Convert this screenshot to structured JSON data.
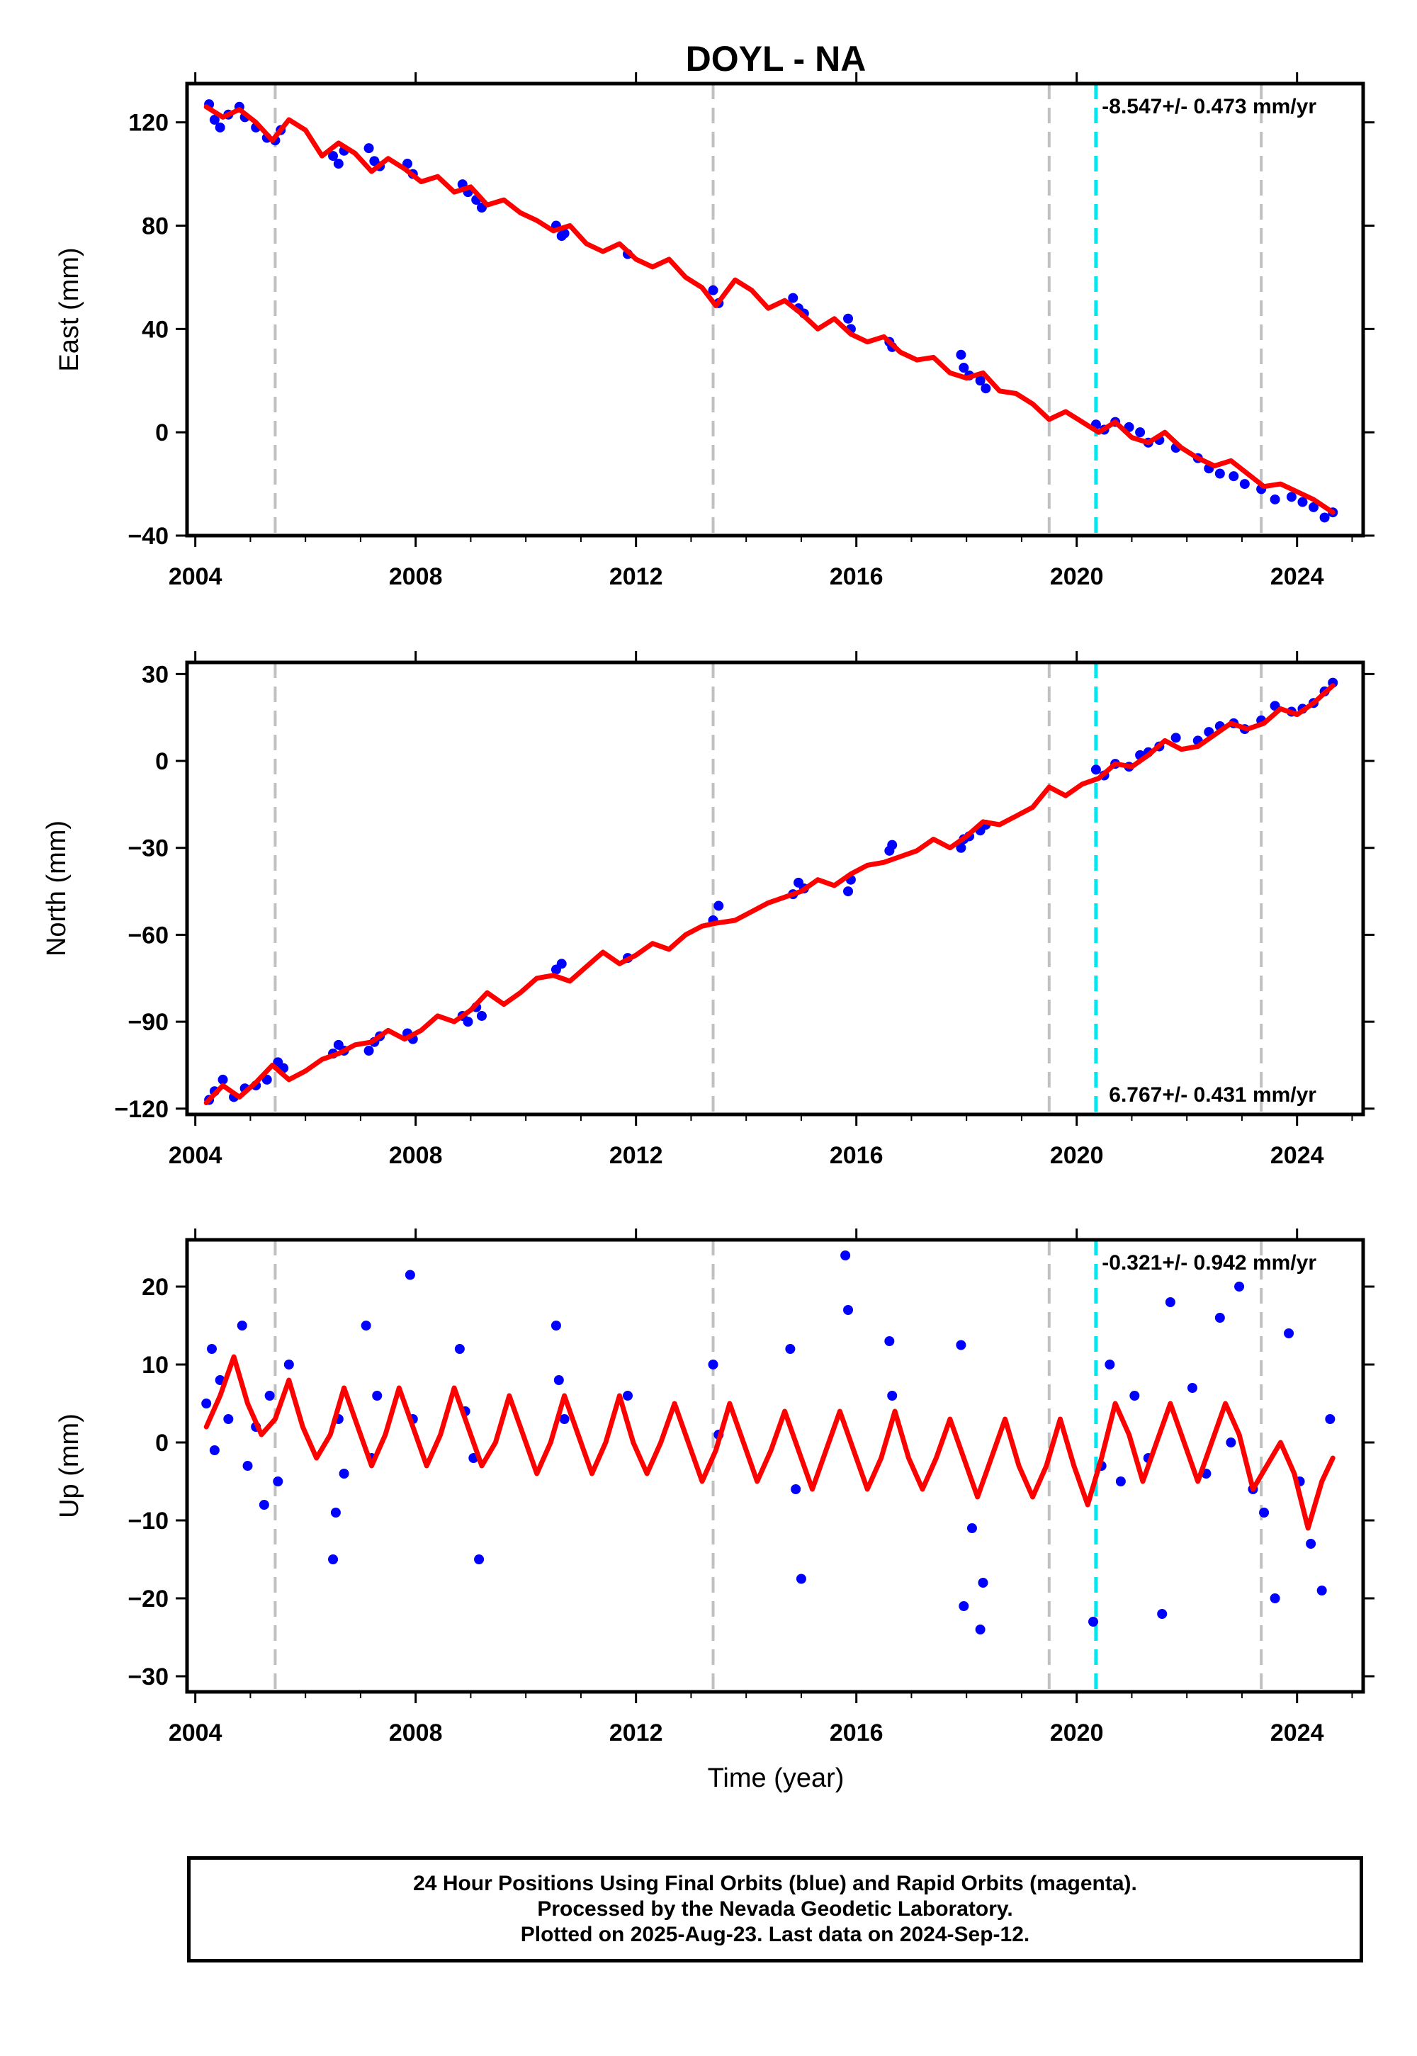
{
  "title": "DOYL - NA",
  "xlabel": "Time (year)",
  "colors": {
    "data_points": "#0000ff",
    "model_fit": "#ff0000",
    "event_line": "#c0c0c0",
    "equipment_change": "#00e5ee",
    "frame": "#000000"
  },
  "chart_data": [
    {
      "type": "scatter",
      "panel": "east",
      "ylabel": "East (mm)",
      "ylim": [
        -40,
        135
      ],
      "yticks": [
        -40,
        0,
        40,
        80,
        120
      ],
      "xlim": [
        2003.85,
        2025.2
      ],
      "xticks": [
        2004,
        2008,
        2012,
        2016,
        2020,
        2024
      ],
      "rate_text": "-8.547+/- 0.473 mm/yr",
      "rate_position": "top-right",
      "series": [
        {
          "marker": "point",
          "color": "#0000ff",
          "x": [
            2004.25,
            2004.35,
            2004.45,
            2004.6,
            2004.8,
            2004.9,
            2005.1,
            2005.3,
            2005.45,
            2005.55,
            2006.5,
            2006.6,
            2006.7,
            2007.15,
            2007.25,
            2007.35,
            2007.85,
            2007.95,
            2008.85,
            2008.95,
            2009.1,
            2009.2,
            2010.55,
            2010.65,
            2010.7,
            2011.85,
            2013.4,
            2013.5,
            2014.85,
            2014.95,
            2015.05,
            2015.85,
            2015.9,
            2016.6,
            2016.65,
            2017.9,
            2017.95,
            2018.05,
            2018.25,
            2018.35,
            2020.35,
            2020.5,
            2020.7,
            2020.95,
            2021.15,
            2021.3,
            2021.5,
            2021.8,
            2022.2,
            2022.4,
            2022.6,
            2022.85,
            2023.05,
            2023.35,
            2023.6,
            2023.9,
            2024.1,
            2024.3,
            2024.5,
            2024.65
          ],
          "y": [
            127,
            121,
            118,
            123,
            126,
            122,
            118,
            114,
            113,
            117,
            107,
            104,
            109,
            110,
            105,
            103,
            104,
            100,
            96,
            93,
            90,
            87,
            80,
            76,
            77,
            69,
            55,
            50,
            52,
            48,
            46,
            44,
            40,
            35,
            33,
            30,
            25,
            22,
            20,
            17,
            3,
            1,
            4,
            2,
            0,
            -4,
            -3,
            -6,
            -10,
            -14,
            -16,
            -17,
            -20,
            -22,
            -26,
            -25,
            -27,
            -29,
            -33,
            -31
          ]
        },
        {
          "marker": "line",
          "color": "#ff0000",
          "x": [
            2004.2,
            2004.5,
            2004.8,
            2005.1,
            2005.4,
            2005.7,
            2006.0,
            2006.3,
            2006.6,
            2006.9,
            2007.2,
            2007.5,
            2007.8,
            2008.1,
            2008.4,
            2008.7,
            2009.0,
            2009.3,
            2009.6,
            2009.9,
            2010.2,
            2010.5,
            2010.8,
            2011.1,
            2011.4,
            2011.7,
            2012.0,
            2012.3,
            2012.6,
            2012.9,
            2013.2,
            2013.45,
            2013.8,
            2014.1,
            2014.4,
            2014.7,
            2015.0,
            2015.3,
            2015.6,
            2015.9,
            2016.2,
            2016.5,
            2016.8,
            2017.1,
            2017.4,
            2017.7,
            2018.0,
            2018.3,
            2018.6,
            2018.9,
            2019.2,
            2019.5,
            2019.8,
            2020.1,
            2020.4,
            2020.7,
            2021.0,
            2021.3,
            2021.6,
            2021.9,
            2022.2,
            2022.5,
            2022.8,
            2023.1,
            2023.4,
            2023.7,
            2024.0,
            2024.3,
            2024.65
          ],
          "y": [
            126,
            122,
            125,
            120,
            113,
            121,
            117,
            107,
            112,
            108,
            101,
            106,
            102,
            97,
            99,
            93,
            95,
            88,
            90,
            85,
            82,
            78,
            80,
            73,
            70,
            73,
            67,
            64,
            67,
            60,
            56,
            49,
            59,
            55,
            48,
            51,
            46,
            40,
            44,
            38,
            35,
            37,
            31,
            28,
            29,
            23,
            21,
            23,
            16,
            15,
            11,
            5,
            8,
            4,
            0,
            4,
            -2,
            -4,
            0,
            -6,
            -10,
            -13,
            -11,
            -16,
            -21,
            -20,
            -23,
            -26,
            -31
          ]
        }
      ]
    },
    {
      "type": "scatter",
      "panel": "north",
      "ylabel": "North (mm)",
      "ylim": [
        -122,
        34
      ],
      "yticks": [
        -120,
        -90,
        -60,
        -30,
        0,
        30
      ],
      "xlim": [
        2003.85,
        2025.2
      ],
      "xticks": [
        2004,
        2008,
        2012,
        2016,
        2020,
        2024
      ],
      "rate_text": "6.767+/- 0.431 mm/yr",
      "rate_position": "bottom-right",
      "series": [
        {
          "marker": "point",
          "color": "#0000ff",
          "x": [
            2004.25,
            2004.35,
            2004.5,
            2004.7,
            2004.9,
            2005.1,
            2005.3,
            2005.5,
            2005.6,
            2006.5,
            2006.6,
            2006.7,
            2007.15,
            2007.25,
            2007.35,
            2007.85,
            2007.95,
            2008.85,
            2008.95,
            2009.1,
            2009.2,
            2010.55,
            2010.65,
            2011.85,
            2013.4,
            2013.5,
            2014.85,
            2014.95,
            2015.05,
            2015.85,
            2015.9,
            2016.6,
            2016.65,
            2017.9,
            2017.95,
            2018.05,
            2018.25,
            2018.35,
            2020.35,
            2020.5,
            2020.7,
            2020.95,
            2021.15,
            2021.3,
            2021.5,
            2021.8,
            2022.2,
            2022.4,
            2022.6,
            2022.85,
            2023.05,
            2023.35,
            2023.6,
            2023.9,
            2024.1,
            2024.3,
            2024.5,
            2024.65
          ],
          "y": [
            -117,
            -114,
            -110,
            -116,
            -113,
            -112,
            -110,
            -104,
            -106,
            -101,
            -98,
            -100,
            -100,
            -97,
            -95,
            -94,
            -96,
            -88,
            -90,
            -85,
            -88,
            -72,
            -70,
            -68,
            -55,
            -50,
            -46,
            -42,
            -44,
            -45,
            -41,
            -31,
            -29,
            -30,
            -27,
            -26,
            -24,
            -22,
            -3,
            -5,
            -1,
            -2,
            2,
            3,
            5,
            8,
            7,
            10,
            12,
            13,
            11,
            14,
            19,
            17,
            18,
            20,
            24,
            27
          ]
        },
        {
          "marker": "line",
          "color": "#ff0000",
          "x": [
            2004.2,
            2004.5,
            2004.8,
            2005.1,
            2005.4,
            2005.7,
            2006.0,
            2006.3,
            2006.6,
            2006.9,
            2007.2,
            2007.5,
            2007.8,
            2008.1,
            2008.4,
            2008.7,
            2009.0,
            2009.3,
            2009.6,
            2009.9,
            2010.2,
            2010.5,
            2010.8,
            2011.1,
            2011.4,
            2011.7,
            2012.0,
            2012.3,
            2012.6,
            2012.9,
            2013.2,
            2013.45,
            2013.8,
            2014.1,
            2014.4,
            2014.7,
            2015.0,
            2015.3,
            2015.6,
            2015.9,
            2016.2,
            2016.5,
            2016.8,
            2017.1,
            2017.4,
            2017.7,
            2018.0,
            2018.3,
            2018.6,
            2018.9,
            2019.2,
            2019.5,
            2019.8,
            2020.1,
            2020.4,
            2020.7,
            2021.0,
            2021.3,
            2021.6,
            2021.9,
            2022.2,
            2022.5,
            2022.8,
            2023.1,
            2023.4,
            2023.7,
            2024.0,
            2024.3,
            2024.65
          ],
          "y": [
            -118,
            -112,
            -116,
            -111,
            -105,
            -110,
            -107,
            -103,
            -101,
            -98,
            -97,
            -93,
            -96,
            -93,
            -88,
            -90,
            -86,
            -80,
            -84,
            -80,
            -75,
            -74,
            -76,
            -71,
            -66,
            -70,
            -67,
            -63,
            -65,
            -60,
            -57,
            -56,
            -55,
            -52,
            -49,
            -47,
            -45,
            -41,
            -43,
            -39,
            -36,
            -35,
            -33,
            -31,
            -27,
            -30,
            -26,
            -21,
            -22,
            -19,
            -16,
            -9,
            -12,
            -8,
            -6,
            -1,
            -2,
            2,
            7,
            4,
            5,
            9,
            13,
            11,
            13,
            18,
            16,
            20,
            26
          ]
        }
      ]
    },
    {
      "type": "scatter",
      "panel": "up",
      "ylabel": "Up (mm)",
      "ylim": [
        -32,
        26
      ],
      "yticks": [
        -30,
        -20,
        -10,
        0,
        10,
        20
      ],
      "xlim": [
        2003.85,
        2025.2
      ],
      "xticks": [
        2004,
        2008,
        2012,
        2016,
        2020,
        2024
      ],
      "xlabel": "Time (year)",
      "rate_text": "-0.321+/- 0.942 mm/yr",
      "rate_position": "top-right",
      "series": [
        {
          "marker": "point",
          "color": "#0000ff",
          "x": [
            2004.2,
            2004.3,
            2004.35,
            2004.45,
            2004.6,
            2004.85,
            2004.95,
            2005.1,
            2005.25,
            2005.35,
            2005.5,
            2005.7,
            2006.5,
            2006.55,
            2006.6,
            2006.7,
            2007.1,
            2007.2,
            2007.3,
            2007.9,
            2007.95,
            2008.8,
            2008.9,
            2009.05,
            2009.15,
            2010.55,
            2010.6,
            2010.7,
            2011.85,
            2013.4,
            2013.5,
            2014.8,
            2014.9,
            2015.0,
            2015.8,
            2015.85,
            2016.6,
            2016.65,
            2017.9,
            2017.95,
            2018.1,
            2018.25,
            2018.3,
            2020.3,
            2020.45,
            2020.6,
            2020.8,
            2021.05,
            2021.3,
            2021.55,
            2021.7,
            2022.1,
            2022.35,
            2022.6,
            2022.8,
            2022.95,
            2023.2,
            2023.4,
            2023.6,
            2023.85,
            2024.05,
            2024.25,
            2024.45,
            2024.6
          ],
          "y": [
            5,
            12,
            -1,
            8,
            3,
            15,
            -3,
            2,
            -8,
            6,
            -5,
            10,
            -15,
            -9,
            3,
            -4,
            15,
            -2,
            6,
            21.5,
            3,
            12,
            4,
            -2,
            -15,
            15,
            8,
            3,
            6,
            10,
            1,
            12,
            -6,
            -17.5,
            24,
            17,
            13,
            6,
            12.5,
            -21,
            -11,
            -24,
            -18,
            -23,
            -3,
            10,
            -5,
            6,
            -2,
            -22,
            18,
            7,
            -4,
            16,
            0,
            20,
            -6,
            -9,
            -20,
            14,
            -5,
            -13,
            -19,
            3
          ]
        },
        {
          "marker": "line",
          "color": "#ff0000",
          "x": [
            2004.2,
            2004.45,
            2004.7,
            2004.95,
            2005.2,
            2005.45,
            2005.7,
            2005.95,
            2006.2,
            2006.45,
            2006.7,
            2006.95,
            2007.2,
            2007.45,
            2007.7,
            2007.95,
            2008.2,
            2008.45,
            2008.7,
            2008.95,
            2009.2,
            2009.45,
            2009.7,
            2009.95,
            2010.2,
            2010.45,
            2010.7,
            2010.95,
            2011.2,
            2011.45,
            2011.7,
            2011.95,
            2012.2,
            2012.45,
            2012.7,
            2012.95,
            2013.2,
            2013.45,
            2013.7,
            2013.95,
            2014.2,
            2014.45,
            2014.7,
            2014.95,
            2015.2,
            2015.45,
            2015.7,
            2015.95,
            2016.2,
            2016.45,
            2016.7,
            2016.95,
            2017.2,
            2017.45,
            2017.7,
            2017.95,
            2018.2,
            2018.45,
            2018.7,
            2018.95,
            2019.2,
            2019.45,
            2019.7,
            2019.95,
            2020.2,
            2020.45,
            2020.7,
            2020.95,
            2021.2,
            2021.45,
            2021.7,
            2021.95,
            2022.2,
            2022.45,
            2022.7,
            2022.95,
            2023.2,
            2023.45,
            2023.7,
            2023.95,
            2024.2,
            2024.45,
            2024.65
          ],
          "y": [
            2,
            6,
            11,
            5,
            1,
            3,
            8,
            2,
            -2,
            1,
            7,
            2,
            -3,
            1,
            7,
            2,
            -3,
            1,
            7,
            2,
            -3,
            0,
            6,
            1,
            -4,
            0,
            6,
            1,
            -4,
            0,
            6,
            0,
            -4,
            0,
            5,
            0,
            -5,
            -1,
            5,
            0,
            -5,
            -1,
            4,
            -1,
            -6,
            -1,
            4,
            -1,
            -6,
            -2,
            4,
            -2,
            -6,
            -2,
            3,
            -2,
            -7,
            -2,
            3,
            -3,
            -7,
            -3,
            3,
            -3,
            -8,
            -2,
            5,
            1,
            -5,
            0,
            5,
            0,
            -5,
            0,
            5,
            1,
            -6,
            -3,
            0,
            -4,
            -11,
            -5,
            -2
          ]
        }
      ]
    }
  ],
  "event_lines": {
    "gray_dashed_years": [
      2005.45,
      2013.4,
      2019.5,
      2023.35
    ],
    "cyan_dashed_years": [
      2020.35
    ]
  },
  "footer": {
    "line1": "24 Hour Positions Using Final Orbits (blue) and Rapid Orbits (magenta).",
    "line2": "Processed by the Nevada Geodetic Laboratory.",
    "line3": "Plotted on 2025-Aug-23. Last data on 2024-Sep-12."
  }
}
